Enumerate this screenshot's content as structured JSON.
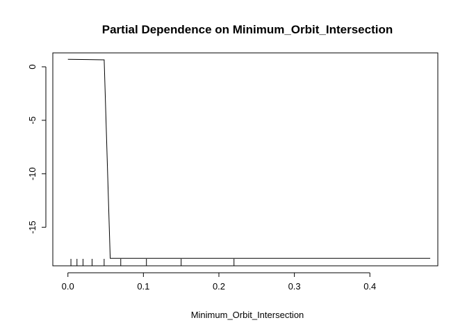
{
  "chart_data": {
    "type": "line",
    "title": "Partial Dependence on  Minimum_Orbit_Intersection",
    "xlabel": "Minimum_Orbit_Intersection",
    "ylabel": "",
    "xlim": [
      -0.02,
      0.49
    ],
    "ylim": [
      -18.6,
      1.3
    ],
    "xticks": [
      0.0,
      0.1,
      0.2,
      0.3,
      0.4
    ],
    "xtick_labels": [
      "0.0",
      "0.1",
      "0.2",
      "0.3",
      "0.4"
    ],
    "yticks": [
      0,
      -5,
      -10,
      -15
    ],
    "ytick_labels": [
      "0",
      "-5",
      "-10",
      "-15"
    ],
    "series": [
      {
        "x": [
          0.0,
          0.048,
          0.056,
          0.48
        ],
        "y": [
          0.7,
          0.65,
          -17.9,
          -17.9
        ]
      }
    ],
    "rug": [
      0.004,
      0.012,
      0.02,
      0.032,
      0.048,
      0.07,
      0.104,
      0.15,
      0.22
    ],
    "grid": false,
    "legend": "none",
    "color": "#000000"
  }
}
